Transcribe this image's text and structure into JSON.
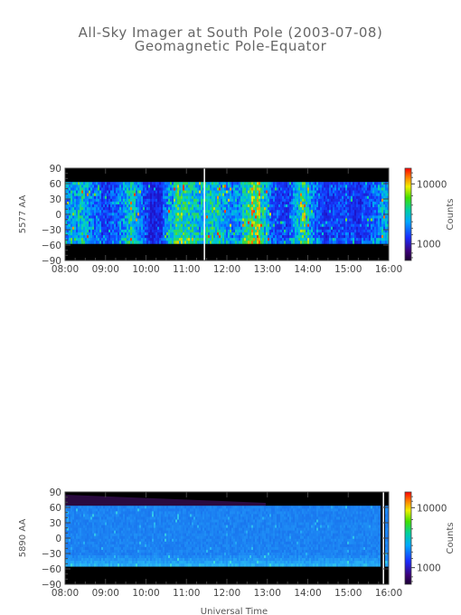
{
  "title_line1": "All-Sky Imager at South Pole (2003-07-08)",
  "title_line2": "Geomagnetic Pole-Equator",
  "chart_data": [
    {
      "type": "heatmap",
      "ylabel": "5577 AA",
      "xlabel": "",
      "x_ticks": [
        "08:00",
        "09:00",
        "10:00",
        "11:00",
        "12:00",
        "13:00",
        "14:00",
        "15:00",
        "16:00"
      ],
      "xlim_hours": [
        8,
        16
      ],
      "y_ticks": [
        90,
        60,
        30,
        0,
        -30,
        -60,
        -90
      ],
      "ylim": [
        -90,
        90
      ],
      "data_y_range": [
        -57,
        63
      ],
      "colorbar": {
        "label": "Counts",
        "ticks": [
          "10000",
          "1000"
        ],
        "scale": "log"
      },
      "gap_marker_hour": 11.45
    },
    {
      "type": "heatmap",
      "ylabel": "5890 AA",
      "xlabel": "Universal Time",
      "x_ticks": [
        "08:00",
        "09:00",
        "10:00",
        "11:00",
        "12:00",
        "13:00",
        "14:00",
        "15:00",
        "16:00"
      ],
      "xlim_hours": [
        8,
        16
      ],
      "y_ticks": [
        90,
        60,
        30,
        0,
        -30,
        -60,
        -90
      ],
      "ylim": [
        -90,
        90
      ],
      "data_y_range": [
        -55,
        63
      ],
      "colorbar": {
        "label": "Counts",
        "ticks": [
          "10000",
          "1000"
        ],
        "scale": "log"
      },
      "gap_marker_hour": 15.82
    }
  ]
}
